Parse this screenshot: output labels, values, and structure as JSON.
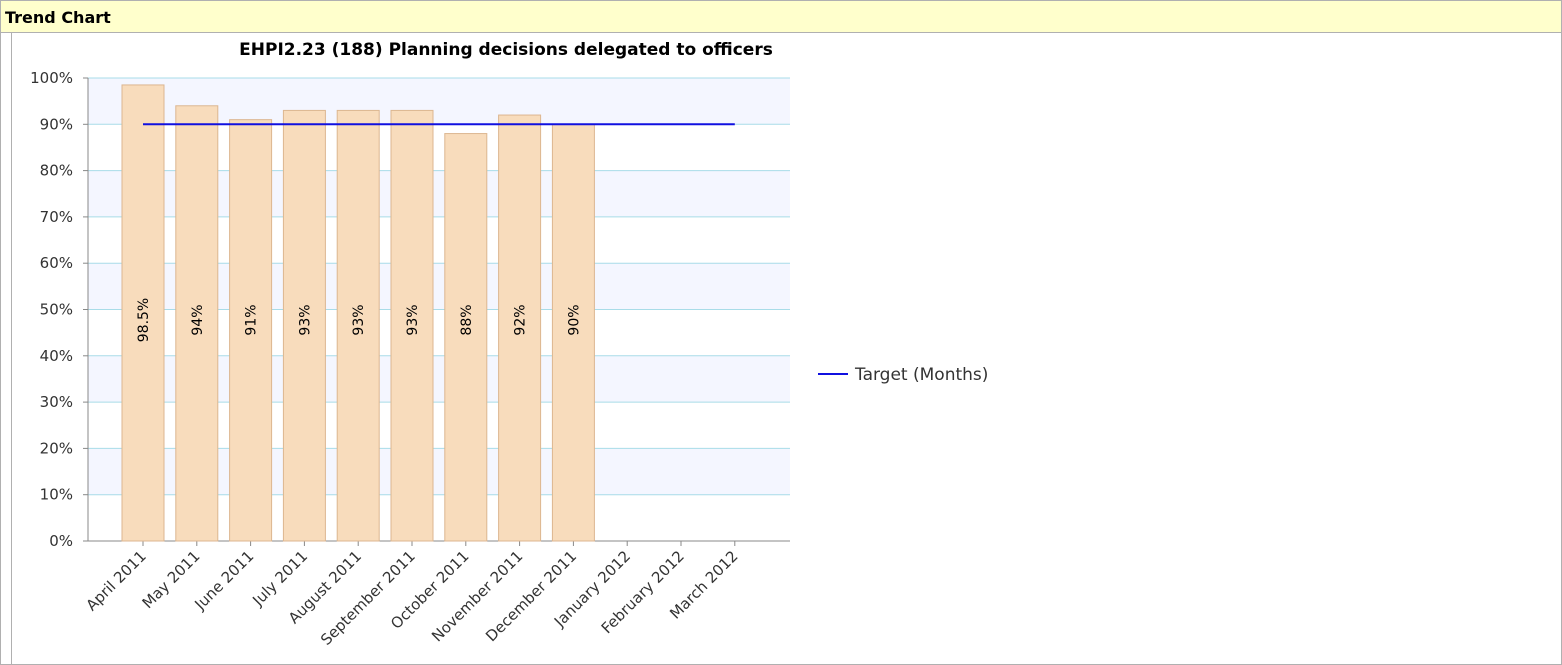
{
  "panel_title": "Trend Chart",
  "chart_data": {
    "type": "bar",
    "title": "EHPI2.23 (188) Planning decisions delegated to officers",
    "categories": [
      "April 2011",
      "May 2011",
      "June 2011",
      "July 2011",
      "August 2011",
      "September 2011",
      "October 2011",
      "November 2011",
      "December 2011",
      "January 2012",
      "February 2012",
      "March 2012"
    ],
    "series": [
      {
        "type": "bar",
        "color": "#f8dcbc",
        "values": [
          98.5,
          94,
          91,
          93,
          93,
          93,
          88,
          92,
          90,
          null,
          null,
          null
        ],
        "value_labels": [
          "98.5%",
          "94%",
          "91%",
          "93%",
          "93%",
          "93%",
          "88%",
          "92%",
          "90%",
          null,
          null,
          null
        ]
      },
      {
        "type": "line",
        "name": "Target (Months)",
        "color": "#1010e0",
        "values": [
          90,
          90,
          90,
          90,
          90,
          90,
          90,
          90,
          90,
          90,
          90,
          90
        ]
      }
    ],
    "ylim": [
      0,
      100
    ],
    "yticks": [
      {
        "value": 0,
        "label": "0%"
      },
      {
        "value": 10,
        "label": "10%"
      },
      {
        "value": 20,
        "label": "20%"
      },
      {
        "value": 30,
        "label": "30%"
      },
      {
        "value": 40,
        "label": "40%"
      },
      {
        "value": 50,
        "label": "50%"
      },
      {
        "value": 60,
        "label": "60%"
      },
      {
        "value": 70,
        "label": "70%"
      },
      {
        "value": 80,
        "label": "80%"
      },
      {
        "value": 90,
        "label": "90%"
      },
      {
        "value": 100,
        "label": "100%"
      }
    ],
    "grid": true,
    "legend": "right"
  }
}
